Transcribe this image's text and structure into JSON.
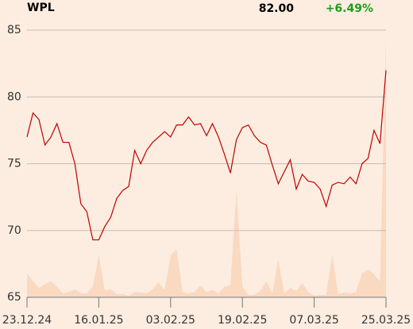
{
  "chart_data": {
    "type": "line",
    "title": "WPL",
    "last_price": "82.00",
    "change": "+6.49%",
    "ylim": [
      65,
      85
    ],
    "yticks": [
      65,
      70,
      75,
      80,
      85
    ],
    "xlim": [
      0,
      60
    ],
    "xticks": [
      {
        "value": 0,
        "label": "23.12.24"
      },
      {
        "value": 12,
        "label": "16.01.25"
      },
      {
        "value": 24,
        "label": "03.02.25"
      },
      {
        "value": 36,
        "label": "19.02.25"
      },
      {
        "value": 48,
        "label": "07.03.25"
      },
      {
        "value": 60,
        "label": "25.03.25"
      }
    ],
    "y2lim": [
      0,
      100
    ],
    "grid": true,
    "series": [
      {
        "name": "Price",
        "color": "#c00000",
        "values": [
          77.0,
          78.8,
          78.3,
          76.4,
          77.0,
          78.0,
          76.6,
          76.6,
          75.0,
          72.0,
          71.4,
          69.3,
          69.3,
          70.3,
          71.0,
          72.4,
          73.0,
          73.3,
          76.0,
          75.0,
          76.0,
          76.6,
          77.0,
          77.4,
          77.0,
          77.9,
          77.9,
          78.5,
          77.9,
          78.0,
          77.1,
          78.0,
          77.0,
          75.7,
          74.3,
          76.8,
          77.7,
          77.9,
          77.1,
          76.6,
          76.4,
          74.9,
          73.5,
          74.4,
          75.3,
          73.1,
          74.2,
          73.7,
          73.6,
          73.1,
          71.8,
          73.4,
          73.6,
          73.5,
          74.0,
          73.5,
          75.0,
          75.4,
          77.5,
          76.5,
          82.0
        ]
      },
      {
        "name": "Volume",
        "color": "#fad9c1",
        "axis": "y2",
        "values": [
          9,
          6,
          3.5,
          5,
          6,
          4,
          1.5,
          2,
          3,
          1.5,
          1.5,
          4,
          16,
          2.7,
          3,
          1.2,
          1.2,
          0.6,
          2,
          1.8,
          1.5,
          3,
          5.6,
          2.7,
          15.7,
          18,
          2,
          1.5,
          2,
          4.5,
          2,
          2.7,
          1.5,
          4,
          4.5,
          40,
          4,
          0.9,
          0.9,
          2.4,
          6,
          1.5,
          14,
          1.5,
          3.5,
          2.4,
          5.3,
          2,
          0.6,
          0.9,
          0.9,
          16,
          1.2,
          1.8,
          1.5,
          2,
          9,
          10.4,
          8.6,
          6,
          98
        ]
      }
    ]
  }
}
